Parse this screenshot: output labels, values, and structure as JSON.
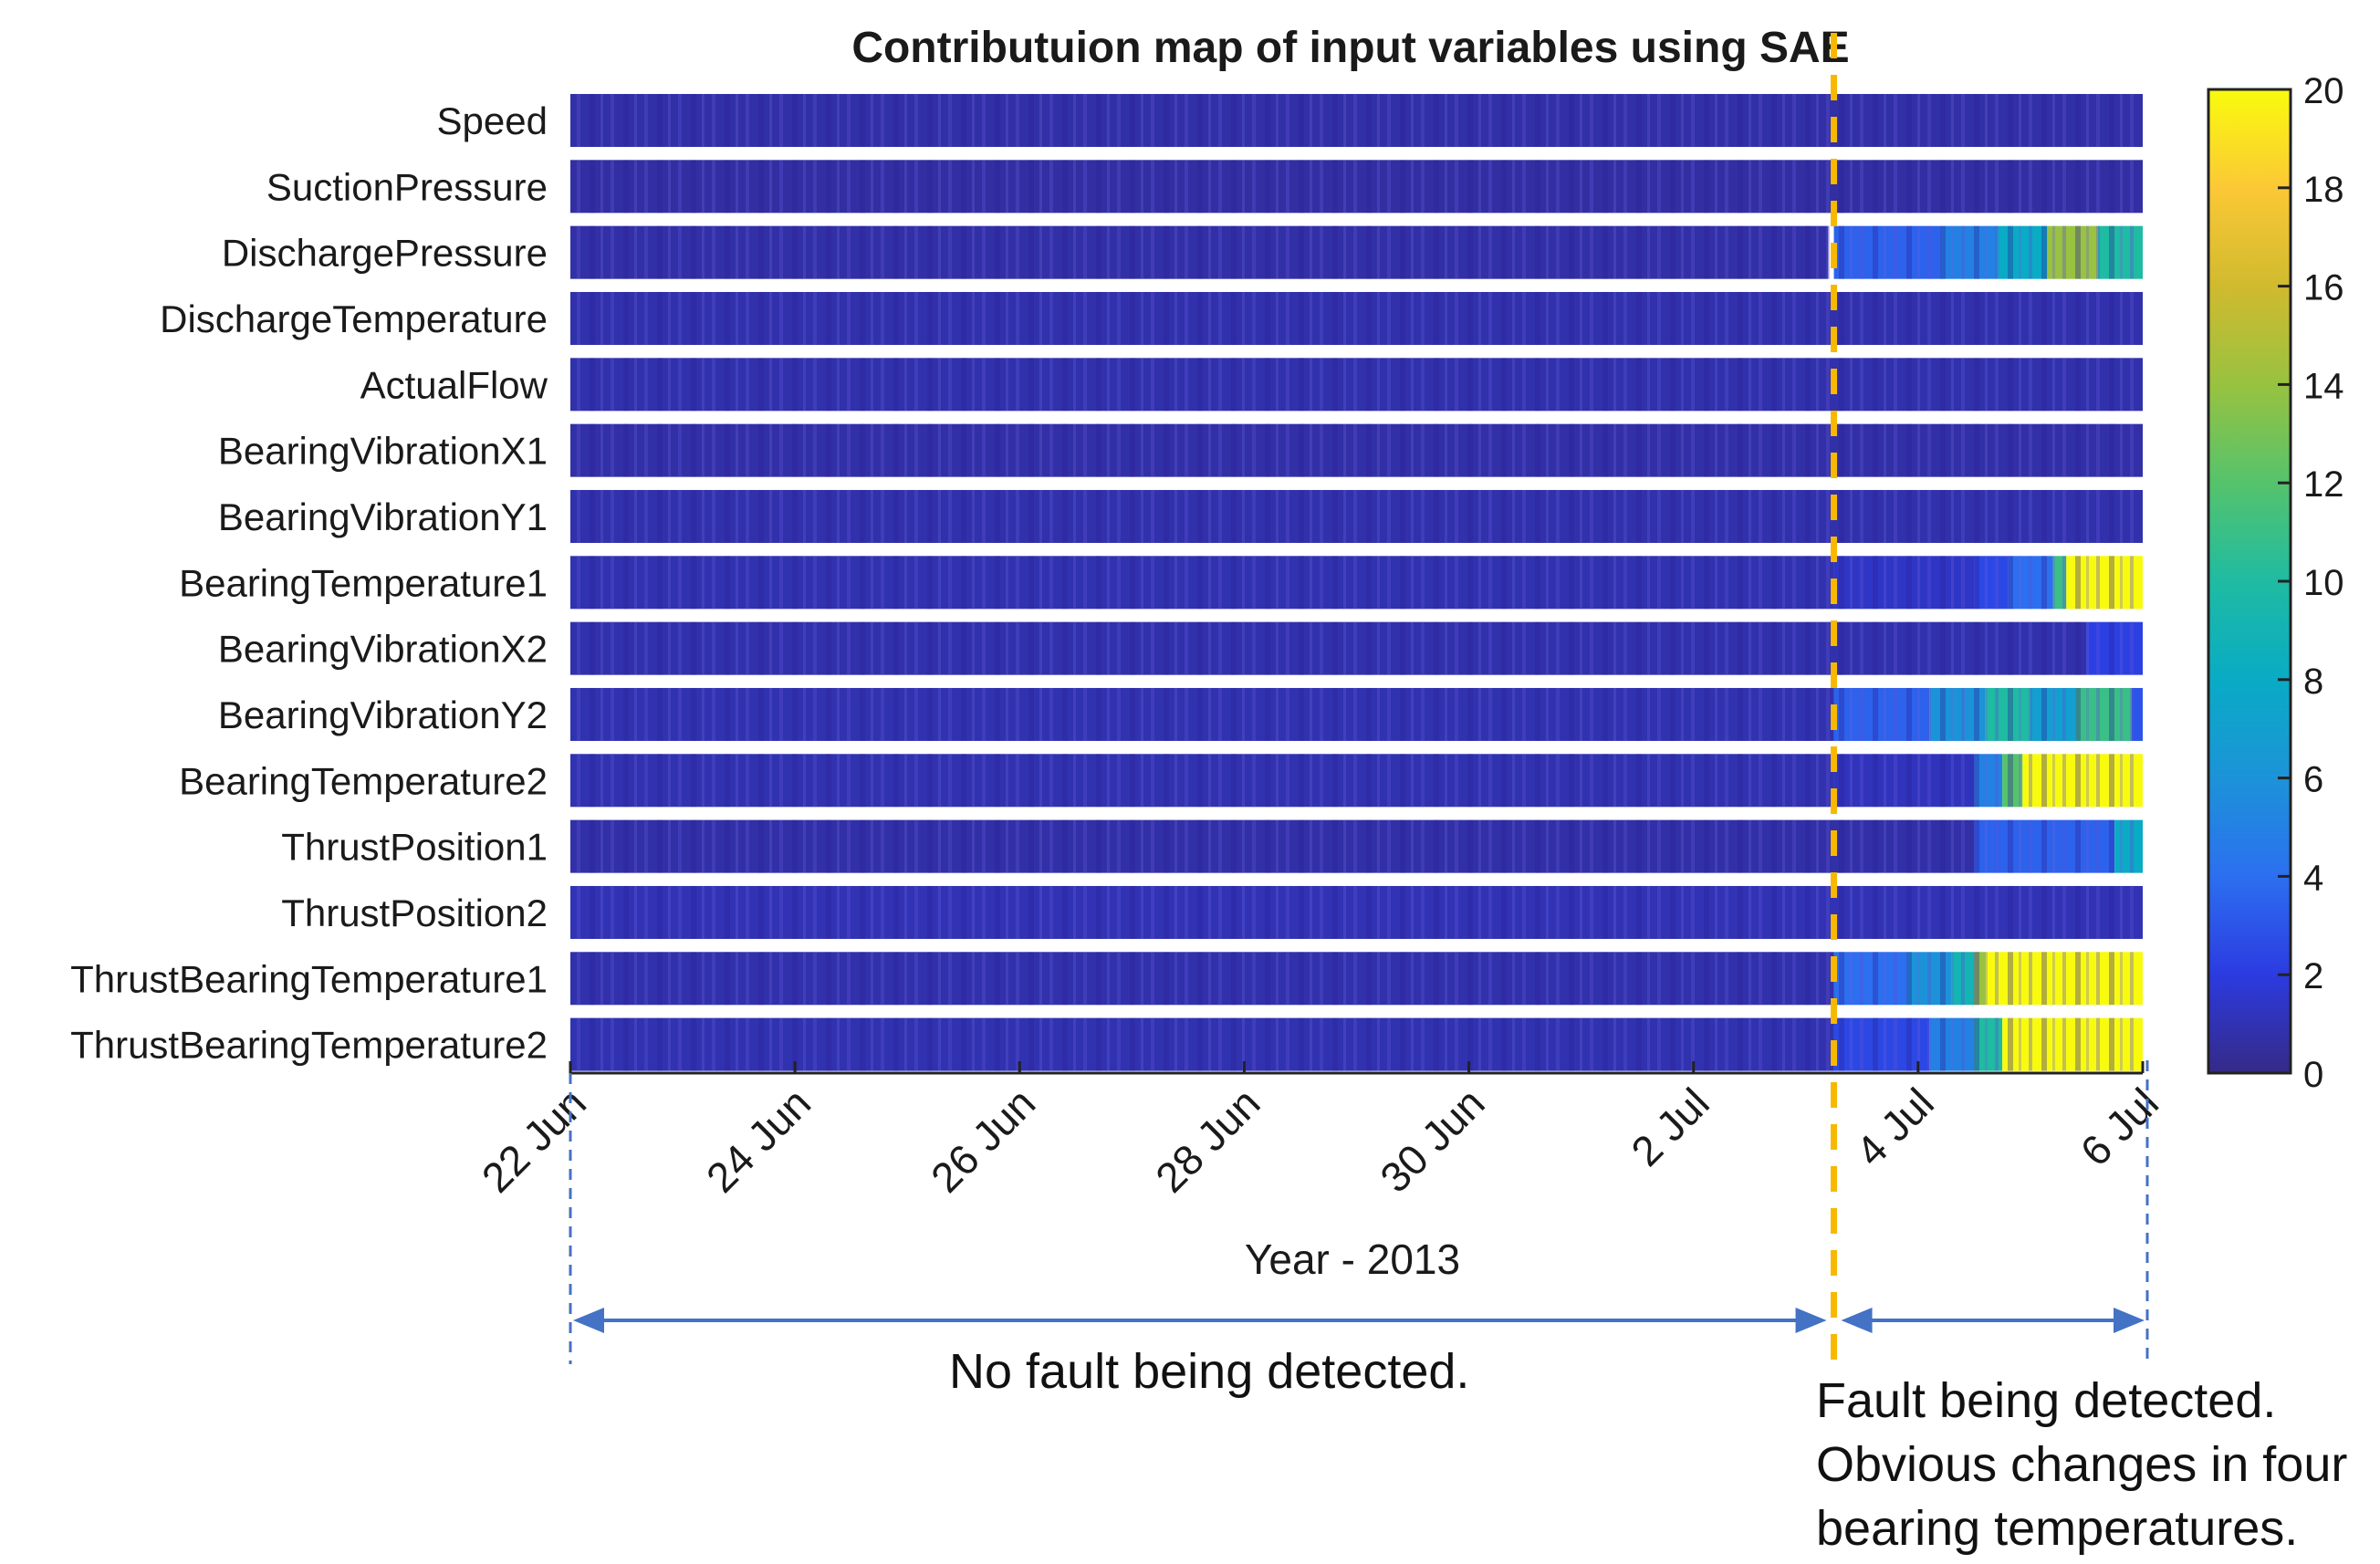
{
  "chart_data": {
    "type": "heatmap",
    "title": "Contributuion map of input variables using SAE",
    "xlabel": "Year - 2013",
    "ylabel": "",
    "x_range_days": [
      0,
      14
    ],
    "x_ticks": [
      {
        "day": 0,
        "label": "22 Jun"
      },
      {
        "day": 2,
        "label": "24 Jun"
      },
      {
        "day": 4,
        "label": "26 Jun"
      },
      {
        "day": 6,
        "label": "28 Jun"
      },
      {
        "day": 8,
        "label": "30 Jun"
      },
      {
        "day": 10,
        "label": "2 Jul"
      },
      {
        "day": 12,
        "label": "4 Jul"
      },
      {
        "day": 14,
        "label": "6 Jul"
      }
    ],
    "variables": [
      "Speed",
      "SuctionPressure",
      "DischargePressure",
      "DischargeTemperature",
      "ActualFlow",
      "BearingVibrationX1",
      "BearingVibrationY1",
      "BearingTemperature1",
      "BearingVibrationX2",
      "BearingVibrationY2",
      "BearingTemperature2",
      "ThrustPosition1",
      "ThrustPosition2",
      "ThrustBearingTemperature1",
      "ThrustBearingTemperature2"
    ],
    "colorbar": {
      "min": 0,
      "max": 20,
      "ticks": [
        0,
        2,
        4,
        6,
        8,
        10,
        12,
        14,
        16,
        18,
        20
      ],
      "colormap": "parula"
    },
    "fault_line_day": 11.25,
    "segments": [
      [
        [
          0,
          14,
          0.7
        ]
      ],
      [
        [
          0,
          14,
          0.6
        ]
      ],
      [
        [
          0,
          11.2,
          0.7
        ],
        [
          11.25,
          12.2,
          3.5
        ],
        [
          12.2,
          12.7,
          5
        ],
        [
          12.7,
          13.15,
          8
        ],
        [
          13.15,
          13.6,
          14
        ],
        [
          13.6,
          14,
          10
        ]
      ],
      [
        [
          0,
          14,
          0.8
        ]
      ],
      [
        [
          0,
          14,
          0.8
        ]
      ],
      [
        [
          0,
          14,
          0.7
        ]
      ],
      [
        [
          0,
          14,
          0.8
        ]
      ],
      [
        [
          0,
          11.25,
          0.9
        ],
        [
          11.25,
          12.5,
          1.4
        ],
        [
          12.5,
          12.8,
          2.5
        ],
        [
          12.8,
          13.2,
          4
        ],
        [
          13.2,
          13.32,
          11
        ],
        [
          13.32,
          14,
          20
        ]
      ],
      [
        [
          0,
          13.5,
          0.8
        ],
        [
          13.5,
          14,
          2.2
        ]
      ],
      [
        [
          0,
          11.25,
          0.9
        ],
        [
          11.25,
          12.1,
          3.5
        ],
        [
          12.1,
          12.6,
          6
        ],
        [
          12.6,
          13.0,
          10
        ],
        [
          13.0,
          13.4,
          7
        ],
        [
          13.4,
          13.9,
          11
        ],
        [
          13.9,
          14,
          3
        ]
      ],
      [
        [
          0,
          11.25,
          0.9
        ],
        [
          11.25,
          12.5,
          1.2
        ],
        [
          12.5,
          12.75,
          5
        ],
        [
          12.75,
          12.93,
          12
        ],
        [
          12.93,
          14,
          20
        ]
      ],
      [
        [
          0,
          12.5,
          0.7
        ],
        [
          12.5,
          13.75,
          3.5
        ],
        [
          13.75,
          14,
          8
        ]
      ],
      [
        [
          0,
          14,
          1.0
        ]
      ],
      [
        [
          0,
          11.25,
          0.8
        ],
        [
          11.25,
          11.9,
          4
        ],
        [
          11.9,
          12.3,
          6
        ],
        [
          12.3,
          12.5,
          9
        ],
        [
          12.5,
          12.6,
          14
        ],
        [
          12.6,
          14,
          20
        ]
      ],
      [
        [
          0,
          11.25,
          0.9
        ],
        [
          11.25,
          12.1,
          2.5
        ],
        [
          12.1,
          12.5,
          5
        ],
        [
          12.5,
          12.75,
          10
        ],
        [
          12.75,
          14,
          20
        ]
      ]
    ]
  },
  "annotations": {
    "no_fault": "No fault being detected.",
    "fault_lines": [
      "Fault being detected.",
      "Obvious changes in four",
      "bearing temperatures."
    ]
  },
  "colors": {
    "fault_line": "#f7b800",
    "arrow": "#4472c4",
    "base": "#3b2dab"
  }
}
